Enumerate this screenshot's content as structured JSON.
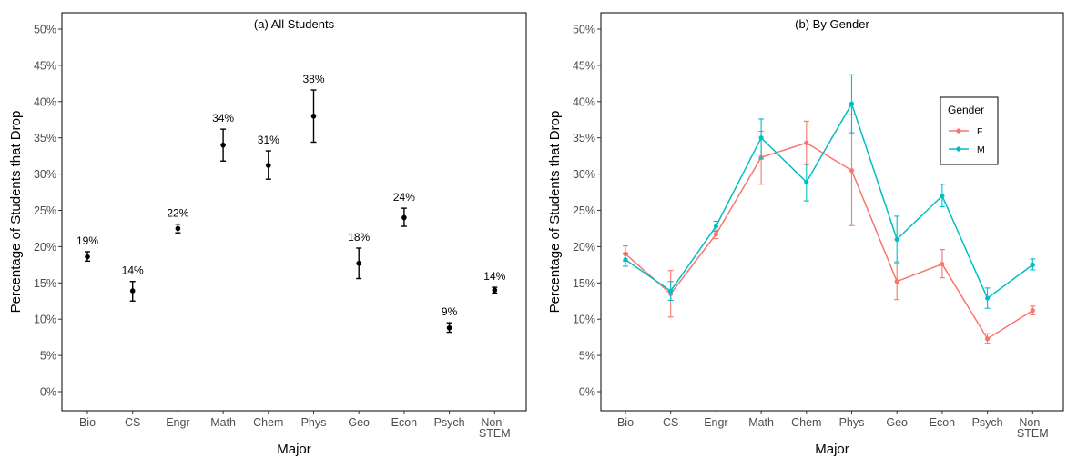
{
  "chart_data": [
    {
      "type": "scatter",
      "title": "(a) All Students",
      "xlabel": "Major",
      "ylabel": "Percentage of Students that Drop",
      "categories": [
        "Bio",
        "CS",
        "Engr",
        "Math",
        "Chem",
        "Phys",
        "Geo",
        "Econ",
        "Psych",
        "Non–|STEM"
      ],
      "ylim": [
        0,
        50
      ],
      "yticks": [
        "0%",
        "5%",
        "10%",
        "15%",
        "20%",
        "25%",
        "30%",
        "35%",
        "40%",
        "45%",
        "50%"
      ],
      "grid": false,
      "series": [
        {
          "values": [
            18.6,
            13.9,
            22.5,
            34.0,
            31.2,
            38.0,
            17.7,
            24.0,
            8.8,
            14.0
          ],
          "lower": [
            18.0,
            12.5,
            21.9,
            31.8,
            29.3,
            34.4,
            15.6,
            22.8,
            8.2,
            13.6
          ],
          "upper": [
            19.3,
            15.2,
            23.1,
            36.2,
            33.2,
            41.6,
            19.8,
            25.3,
            9.5,
            14.4
          ],
          "labels": [
            "19%",
            "14%",
            "22%",
            "34%",
            "31%",
            "38%",
            "18%",
            "24%",
            "9%",
            "14%"
          ],
          "color": "#000000"
        }
      ]
    },
    {
      "type": "line",
      "title": "(b) By Gender",
      "xlabel": "Major",
      "ylabel": "Percentage of Students that Drop",
      "categories": [
        "Bio",
        "CS",
        "Engr",
        "Math",
        "Chem",
        "Phys",
        "Geo",
        "Econ",
        "Psych",
        "Non–|STEM"
      ],
      "ylim": [
        0,
        50
      ],
      "yticks": [
        "0%",
        "5%",
        "10%",
        "15%",
        "20%",
        "25%",
        "30%",
        "35%",
        "40%",
        "45%",
        "50%"
      ],
      "grid": false,
      "legend": {
        "title": "Gender",
        "placement": "top-right"
      },
      "series": [
        {
          "name": "F",
          "color": "#F8766D",
          "values": [
            19.0,
            13.5,
            21.7,
            32.3,
            34.3,
            30.5,
            15.2,
            17.6,
            7.3,
            11.2
          ],
          "lower": [
            18.0,
            10.3,
            21.1,
            28.6,
            31.3,
            22.9,
            12.7,
            15.7,
            6.6,
            10.6
          ],
          "upper": [
            20.1,
            16.7,
            22.3,
            35.9,
            37.3,
            38.2,
            17.7,
            19.6,
            8.0,
            11.8
          ]
        },
        {
          "name": "M",
          "color": "#00BFC4",
          "values": [
            18.2,
            13.9,
            22.8,
            35.0,
            28.9,
            39.7,
            21.0,
            27.0,
            12.9,
            17.5
          ],
          "lower": [
            17.3,
            12.6,
            22.1,
            32.1,
            26.3,
            35.7,
            17.9,
            25.5,
            11.5,
            16.8
          ],
          "upper": [
            19.1,
            15.2,
            23.5,
            37.6,
            31.4,
            43.7,
            24.2,
            28.6,
            14.3,
            18.3
          ]
        }
      ]
    }
  ]
}
